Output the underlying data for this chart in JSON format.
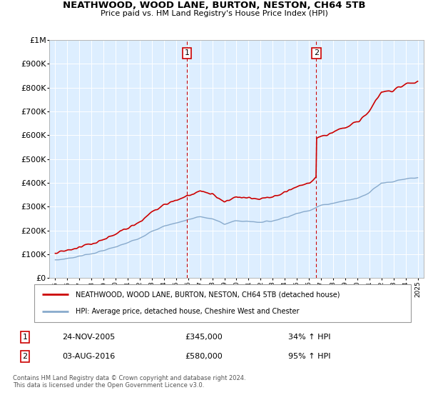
{
  "title": "NEATHWOOD, WOOD LANE, BURTON, NESTON, CH64 5TB",
  "subtitle": "Price paid vs. HM Land Registry's House Price Index (HPI)",
  "property_label": "NEATHWOOD, WOOD LANE, BURTON, NESTON, CH64 5TB (detached house)",
  "hpi_label": "HPI: Average price, detached house, Cheshire West and Chester",
  "sale1_date_label": "24-NOV-2005",
  "sale1_price": 345000,
  "sale1_pct": "34% ↑ HPI",
  "sale2_date_label": "03-AUG-2016",
  "sale2_price": 580000,
  "sale2_pct": "95% ↑ HPI",
  "sale1_x": 2005.9,
  "sale2_x": 2016.6,
  "ylim": [
    0,
    1000000
  ],
  "xlim": [
    1994.5,
    2025.5
  ],
  "footer": "Contains HM Land Registry data © Crown copyright and database right 2024.\nThis data is licensed under the Open Government Licence v3.0.",
  "bg_color": "#ddeeff",
  "line_color_red": "#cc0000",
  "line_color_blue": "#88aacc",
  "vline_color": "#cc0000",
  "hpi_base_values": [
    [
      1995,
      75000
    ],
    [
      1996,
      82000
    ],
    [
      1997,
      92000
    ],
    [
      1998,
      102000
    ],
    [
      1999,
      115000
    ],
    [
      2000,
      130000
    ],
    [
      2001,
      148000
    ],
    [
      2002,
      170000
    ],
    [
      2003,
      195000
    ],
    [
      2004,
      218000
    ],
    [
      2005,
      232000
    ],
    [
      2006,
      245000
    ],
    [
      2007,
      258000
    ],
    [
      2008,
      248000
    ],
    [
      2009,
      228000
    ],
    [
      2010,
      240000
    ],
    [
      2011,
      238000
    ],
    [
      2012,
      235000
    ],
    [
      2013,
      240000
    ],
    [
      2014,
      255000
    ],
    [
      2015,
      270000
    ],
    [
      2016,
      285000
    ],
    [
      2017,
      305000
    ],
    [
      2018,
      315000
    ],
    [
      2019,
      325000
    ],
    [
      2020,
      335000
    ],
    [
      2021,
      360000
    ],
    [
      2022,
      400000
    ],
    [
      2023,
      405000
    ],
    [
      2024,
      415000
    ],
    [
      2025,
      420000
    ]
  ],
  "yticks": [
    0,
    100000,
    200000,
    300000,
    400000,
    500000,
    600000,
    700000,
    800000,
    900000,
    1000000
  ],
  "ylabels": [
    "£0",
    "£100K",
    "£200K",
    "£300K",
    "£400K",
    "£500K",
    "£600K",
    "£700K",
    "£800K",
    "£900K",
    "£1M"
  ]
}
